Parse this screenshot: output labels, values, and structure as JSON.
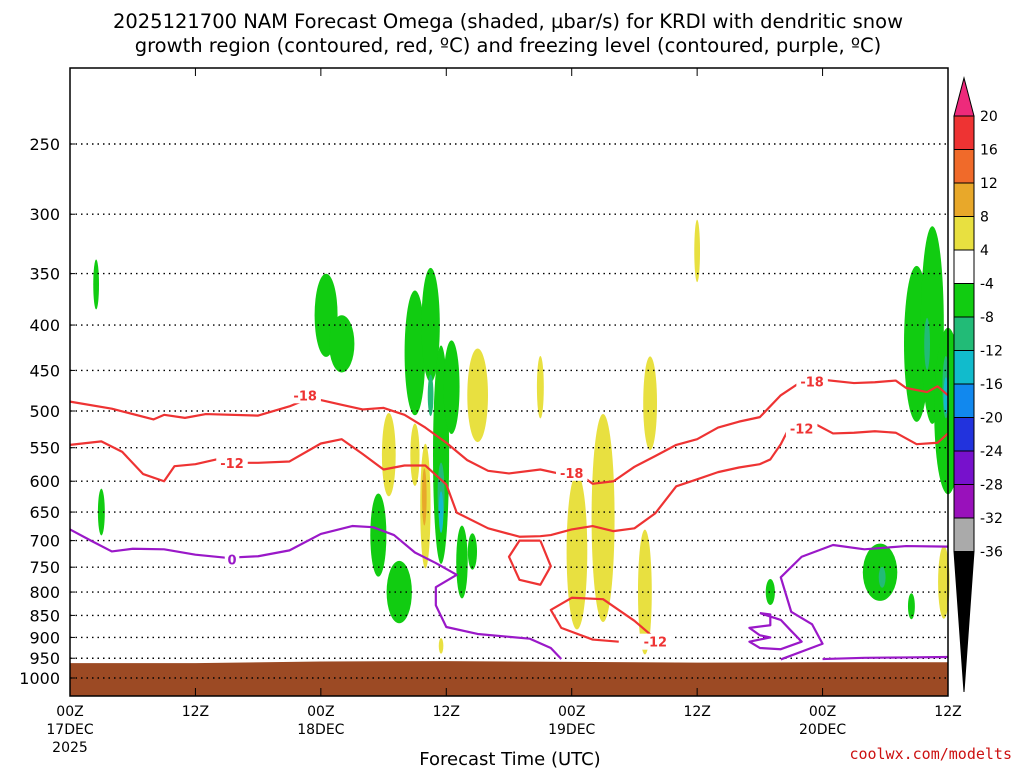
{
  "title_line1": "2025121700 NAM Forecast Omega (shaded, µbar/s) for KRDI with dendritic snow",
  "title_line2": "growth region (contoured, red, ºC) and freezing level (contoured, purple, ºC)",
  "credit": "coolwx.com/modelts",
  "colors": {
    "terrain": "#9c4a24",
    "temp_contour": "#ee3333",
    "freezing_contour": "#9a18c8",
    "grid": "#000000"
  },
  "chart_data": {
    "type": "heatmap",
    "xlabel": "Forecast Time (UTC)",
    "ylabel": "",
    "y_scale": "log-pressure (reversed)",
    "x_range_hours": [
      0,
      84
    ],
    "y_range_hPa": [
      1000,
      200
    ],
    "x_ticks": [
      {
        "hour": 0,
        "l1": "00Z",
        "l2": "17DEC",
        "l3": "2025"
      },
      {
        "hour": 12,
        "l1": "12Z",
        "l2": "",
        "l3": ""
      },
      {
        "hour": 24,
        "l1": "00Z",
        "l2": "18DEC",
        "l3": ""
      },
      {
        "hour": 36,
        "l1": "12Z",
        "l2": "",
        "l3": ""
      },
      {
        "hour": 48,
        "l1": "00Z",
        "l2": "19DEC",
        "l3": ""
      },
      {
        "hour": 60,
        "l1": "12Z",
        "l2": "",
        "l3": ""
      },
      {
        "hour": 72,
        "l1": "00Z",
        "l2": "20DEC",
        "l3": ""
      },
      {
        "hour": 84,
        "l1": "12Z",
        "l2": "",
        "l3": ""
      }
    ],
    "y_ticks": [
      {
        "p": 250,
        "label": "250"
      },
      {
        "p": 300,
        "label": "300"
      },
      {
        "p": 350,
        "label": "350"
      },
      {
        "p": 400,
        "label": "400"
      },
      {
        "p": 450,
        "label": "450"
      },
      {
        "p": 500,
        "label": "500"
      },
      {
        "p": 550,
        "label": "550"
      },
      {
        "p": 600,
        "label": "600"
      },
      {
        "p": 650,
        "label": "650"
      },
      {
        "p": 700,
        "label": "700"
      },
      {
        "p": 750,
        "label": "750"
      },
      {
        "p": 800,
        "label": "800"
      },
      {
        "p": 850,
        "label": "850"
      },
      {
        "p": 900,
        "label": "900"
      },
      {
        "p": 950,
        "label": "950"
      },
      {
        "p": 1000,
        "label": "1000"
      }
    ],
    "grid": true,
    "terrain_surface_hPa": [
      [
        0,
        962
      ],
      [
        12,
        962
      ],
      [
        24,
        958
      ],
      [
        36,
        957
      ],
      [
        48,
        959
      ],
      [
        60,
        961
      ],
      [
        72,
        960
      ],
      [
        84,
        960
      ]
    ],
    "colorbar": {
      "orientation": "vertical",
      "labels": [
        "20",
        "16",
        "12",
        "8",
        "4",
        "-4",
        "-8",
        "-12",
        "-16",
        "-20",
        "-24",
        "-28",
        "-32",
        "-36"
      ],
      "colors": [
        "#ee2a7b",
        "#ee3333",
        "#f06a2a",
        "#e8a82a",
        "#e8e040",
        "#ffffff",
        "#11cc11",
        "#22bb77",
        "#11bbcc",
        "#1188ee",
        "#2233dd",
        "#7711cc",
        "#9911bb",
        "#aaaaaa",
        "#000000"
      ]
    },
    "contours": [
      {
        "name": "-18",
        "kind": "temp",
        "label_points": [
          [
            22.5,
            480
          ],
          [
            71,
            463
          ],
          [
            48,
            587
          ]
        ],
        "points": [
          [
            0,
            488
          ],
          [
            4,
            497
          ],
          [
            8,
            511
          ],
          [
            9,
            505
          ],
          [
            11,
            509
          ],
          [
            13,
            504
          ],
          [
            18,
            506
          ],
          [
            21,
            494
          ],
          [
            23,
            483
          ],
          [
            26,
            492
          ],
          [
            28,
            498
          ],
          [
            30,
            496
          ],
          [
            32,
            505
          ],
          [
            34,
            522
          ],
          [
            36,
            543
          ],
          [
            38,
            568
          ],
          [
            40,
            584
          ],
          [
            42,
            588
          ],
          [
            45,
            582
          ],
          [
            47,
            589
          ],
          [
            49,
            592
          ],
          [
            50,
            604
          ],
          [
            52,
            600
          ],
          [
            54,
            578
          ],
          [
            56,
            562
          ],
          [
            58,
            546
          ],
          [
            60,
            538
          ],
          [
            62,
            522
          ],
          [
            64,
            514
          ],
          [
            66,
            508
          ],
          [
            68,
            480
          ],
          [
            70,
            463
          ],
          [
            72,
            461
          ],
          [
            75,
            465
          ],
          [
            77,
            464
          ],
          [
            79,
            462
          ],
          [
            80,
            471
          ],
          [
            82,
            476
          ],
          [
            83,
            469
          ],
          [
            84,
            480
          ]
        ]
      },
      {
        "name": "-12",
        "kind": "temp",
        "label_points": [
          [
            15.5,
            572
          ],
          [
            70,
            523
          ],
          [
            56,
            910
          ]
        ],
        "points": [
          [
            0,
            546
          ],
          [
            3,
            541
          ],
          [
            5,
            556
          ],
          [
            7,
            589
          ],
          [
            9,
            600
          ],
          [
            10,
            577
          ],
          [
            12,
            574
          ],
          [
            14,
            567
          ],
          [
            16,
            572
          ],
          [
            18,
            572
          ],
          [
            21,
            570
          ],
          [
            24,
            544
          ],
          [
            26,
            538
          ],
          [
            28,
            559
          ],
          [
            30,
            582
          ],
          [
            32,
            576
          ],
          [
            34,
            576
          ],
          [
            36,
            605
          ],
          [
            37,
            651
          ],
          [
            40,
            678
          ],
          [
            43,
            693
          ],
          [
            45,
            692
          ],
          [
            46,
            690
          ],
          [
            48,
            680
          ],
          [
            50,
            674
          ],
          [
            52,
            683
          ],
          [
            54,
            678
          ],
          [
            56,
            652
          ],
          [
            58,
            608
          ],
          [
            60,
            597
          ],
          [
            62,
            586
          ],
          [
            64,
            579
          ],
          [
            66,
            574
          ],
          [
            67,
            567
          ],
          [
            68,
            545
          ],
          [
            69,
            517
          ],
          [
            71,
            515
          ],
          [
            73,
            530
          ],
          [
            75,
            529
          ],
          [
            77,
            527
          ],
          [
            79,
            529
          ],
          [
            81,
            545
          ],
          [
            83,
            543
          ],
          [
            84,
            530
          ]
        ]
      },
      {
        "name": "-12 closed",
        "kind": "temp",
        "label_points": [],
        "points": [
          [
            45,
            700
          ],
          [
            43,
            700
          ],
          [
            42,
            730
          ],
          [
            43,
            775
          ],
          [
            45,
            785
          ],
          [
            46,
            748
          ],
          [
            45,
            700
          ]
        ]
      },
      {
        "name": "-12 lower",
        "kind": "temp",
        "label_points": [],
        "points": [
          [
            52.5,
            910
          ],
          [
            50,
            905
          ],
          [
            47,
            878
          ],
          [
            46,
            838
          ],
          [
            48,
            812
          ],
          [
            51,
            815
          ],
          [
            54,
            862
          ],
          [
            56,
            903
          ],
          [
            56.5,
            905
          ]
        ]
      },
      {
        "name": "0",
        "kind": "freezing",
        "label_points": [
          [
            15.5,
            735
          ]
        ],
        "points": [
          [
            0,
            680
          ],
          [
            2,
            700
          ],
          [
            4,
            720
          ],
          [
            6,
            715
          ],
          [
            9,
            716
          ],
          [
            12,
            726
          ],
          [
            15,
            732
          ],
          [
            18,
            729
          ],
          [
            21,
            718
          ],
          [
            24,
            688
          ],
          [
            27,
            674
          ],
          [
            29,
            676
          ],
          [
            31,
            690
          ],
          [
            33,
            722
          ],
          [
            35,
            742
          ],
          [
            37,
            765
          ],
          [
            35,
            790
          ],
          [
            35,
            828
          ],
          [
            36,
            876
          ],
          [
            39,
            892
          ],
          [
            44,
            903
          ],
          [
            46,
            925
          ],
          [
            47,
            952
          ]
        ]
      },
      {
        "name": "0 right",
        "kind": "freezing",
        "label_points": [],
        "points": [
          [
            68,
            953
          ],
          [
            72,
            915
          ],
          [
            71,
            870
          ],
          [
            69,
            842
          ],
          [
            68,
            770
          ],
          [
            70,
            730
          ],
          [
            73,
            708
          ],
          [
            76,
            716
          ],
          [
            80,
            710
          ],
          [
            84,
            711
          ]
        ]
      },
      {
        "name": "0 loop",
        "kind": "freezing",
        "label_points": [],
        "points": [
          [
            66,
            845
          ],
          [
            67,
            848
          ],
          [
            67,
            872
          ],
          [
            65,
            878
          ],
          [
            66,
            895
          ],
          [
            67,
            900
          ],
          [
            65,
            910
          ],
          [
            66,
            925
          ],
          [
            68,
            928
          ],
          [
            70,
            910
          ],
          [
            69,
            885
          ],
          [
            68,
            860
          ],
          [
            66,
            845
          ]
        ]
      },
      {
        "name": "0 surface",
        "kind": "freezing",
        "label_points": [],
        "points": [
          [
            72,
            952
          ],
          [
            76,
            949
          ],
          [
            80,
            948
          ],
          [
            84,
            947
          ]
        ]
      }
    ],
    "omega_blobs": [
      {
        "color": "#11cc11",
        "h": 2.5,
        "p": 360,
        "w": 0.25,
        "d": 48
      },
      {
        "color": "#11cc11",
        "h": 3.0,
        "p": 650,
        "w": 0.3,
        "d": 45
      },
      {
        "color": "#11cc11",
        "h": 24.5,
        "p": 390,
        "w": 1.0,
        "d": 80
      },
      {
        "color": "#11cc11",
        "h": 26,
        "p": 420,
        "w": 1.1,
        "d": 55
      },
      {
        "color": "#11cc11",
        "h": 29.5,
        "p": 690,
        "w": 0.7,
        "d": 80
      },
      {
        "color": "#11cc11",
        "h": 31.5,
        "p": 800,
        "w": 1.1,
        "d": 60
      },
      {
        "color": "#11cc11",
        "h": 33,
        "p": 430,
        "w": 0.9,
        "d": 120
      },
      {
        "color": "#11cc11",
        "h": 34.5,
        "p": 400,
        "w": 0.8,
        "d": 110
      },
      {
        "color": "#11cc11",
        "h": 35.5,
        "p": 560,
        "w": 0.7,
        "d": 210
      },
      {
        "color": "#11cc11",
        "h": 36.5,
        "p": 470,
        "w": 0.7,
        "d": 90
      },
      {
        "color": "#11cc11",
        "h": 37.5,
        "p": 740,
        "w": 0.5,
        "d": 70
      },
      {
        "color": "#11cc11",
        "h": 38.5,
        "p": 720,
        "w": 0.4,
        "d": 35
      },
      {
        "color": "#11cc11",
        "h": 67,
        "p": 800,
        "w": 0.4,
        "d": 25
      },
      {
        "color": "#11cc11",
        "h": 77.5,
        "p": 760,
        "w": 1.5,
        "d": 55
      },
      {
        "color": "#11cc11",
        "h": 80.5,
        "p": 830,
        "w": 0.3,
        "d": 25
      },
      {
        "color": "#11cc11",
        "h": 81,
        "p": 420,
        "w": 1.1,
        "d": 150
      },
      {
        "color": "#11cc11",
        "h": 82.5,
        "p": 400,
        "w": 1.0,
        "d": 190
      },
      {
        "color": "#11cc11",
        "h": 84,
        "p": 500,
        "w": 1.2,
        "d": 160
      },
      {
        "color": "#22bb77",
        "h": 34.5,
        "p": 480,
        "w": 0.25,
        "d": 40
      },
      {
        "color": "#22bb77",
        "h": 35.5,
        "p": 620,
        "w": 0.3,
        "d": 60
      },
      {
        "color": "#11bbcc",
        "h": 35.5,
        "p": 650,
        "w": 0.2,
        "d": 40
      },
      {
        "color": "#22bb77",
        "h": 82,
        "p": 420,
        "w": 0.25,
        "d": 50
      },
      {
        "color": "#22bb77",
        "h": 83.8,
        "p": 470,
        "w": 0.3,
        "d": 60
      },
      {
        "color": "#11bbcc",
        "h": 83.8,
        "p": 480,
        "w": 0.2,
        "d": 35
      },
      {
        "color": "#22bb77",
        "h": 77.7,
        "p": 770,
        "w": 0.3,
        "d": 20
      },
      {
        "color": "#e8e040",
        "h": 30.5,
        "p": 560,
        "w": 0.6,
        "d": 80
      },
      {
        "color": "#e8e040",
        "h": 33,
        "p": 560,
        "w": 0.4,
        "d": 60
      },
      {
        "color": "#e8e040",
        "h": 34,
        "p": 640,
        "w": 0.45,
        "d": 120
      },
      {
        "color": "#e8a82a",
        "h": 33.9,
        "p": 625,
        "w": 0.2,
        "d": 55
      },
      {
        "color": "#e8e040",
        "h": 39,
        "p": 480,
        "w": 0.9,
        "d": 90
      },
      {
        "color": "#e8e040",
        "h": 45,
        "p": 470,
        "w": 0.3,
        "d": 60
      },
      {
        "color": "#e8e040",
        "h": 48.5,
        "p": 720,
        "w": 0.9,
        "d": 150
      },
      {
        "color": "#e8e040",
        "h": 51,
        "p": 660,
        "w": 1.0,
        "d": 200
      },
      {
        "color": "#e8e040",
        "h": 55.5,
        "p": 490,
        "w": 0.6,
        "d": 90
      },
      {
        "color": "#e8e040",
        "h": 55,
        "p": 800,
        "w": 0.6,
        "d": 120
      },
      {
        "color": "#e8e040",
        "h": 60,
        "p": 330,
        "w": 0.25,
        "d": 60
      },
      {
        "color": "#e8e040",
        "h": 83.6,
        "p": 780,
        "w": 0.5,
        "d": 70
      },
      {
        "color": "#e8e040",
        "h": 35.5,
        "p": 920,
        "w": 0.2,
        "d": 15
      }
    ]
  }
}
